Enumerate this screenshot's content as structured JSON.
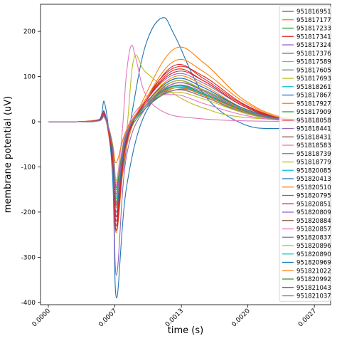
{
  "chart_data": {
    "type": "line",
    "xlabel": "time (s)",
    "ylabel": "membrane potential (uV)",
    "xlim": [
      -8e-05,
      0.0029
    ],
    "ylim": [
      -405,
      260
    ],
    "xticks": [
      {
        "value": 0.0,
        "label": "0.0000"
      },
      {
        "value": 0.000683,
        "label": "0.0007"
      },
      {
        "value": 0.001367,
        "label": "0.0013"
      },
      {
        "value": 0.00205,
        "label": "0.0020"
      },
      {
        "value": 0.002733,
        "label": "0.0027"
      }
    ],
    "yticks": [
      -400,
      -300,
      -200,
      -100,
      0,
      100,
      200
    ],
    "grid": false,
    "legend_position": "top-right",
    "series": [
      {
        "name": "951816951",
        "color": "#1f77b4",
        "x": [
          0,
          0.0003,
          0.00052,
          0.00058,
          0.00066,
          0.0007,
          0.00076,
          0.00086,
          0.001,
          0.00117,
          0.0013,
          0.0016,
          0.002,
          0.0024,
          0.0029
        ],
        "y": [
          0,
          0,
          3,
          20,
          -80,
          -180,
          -120,
          20,
          170,
          230,
          190,
          60,
          -5,
          -15,
          -10
        ]
      },
      {
        "name": "951817177",
        "color": "#ff7f0e",
        "x": [
          0,
          0.0003,
          0.00052,
          0.00058,
          0.00066,
          0.0007,
          0.0008,
          0.001,
          0.0013,
          0.0016,
          0.002,
          0.0024,
          0.0029
        ],
        "y": [
          0,
          0,
          5,
          15,
          -100,
          -245,
          -60,
          60,
          162,
          130,
          50,
          10,
          0
        ]
      },
      {
        "name": "951817233",
        "color": "#2ca02c",
        "x": [
          0,
          0.0003,
          0.00052,
          0.00058,
          0.00066,
          0.0007,
          0.0008,
          0.001,
          0.0013,
          0.0016,
          0.002,
          0.0024,
          0.0029
        ],
        "y": [
          0,
          0,
          2,
          10,
          -60,
          -160,
          -40,
          30,
          75,
          60,
          25,
          5,
          0
        ]
      },
      {
        "name": "951817341",
        "color": "#d62728",
        "x": [
          0,
          0.0003,
          0.00052,
          0.00058,
          0.00066,
          0.0007,
          0.0008,
          0.001,
          0.0013,
          0.0016,
          0.002,
          0.0024,
          0.0029
        ],
        "y": [
          0,
          0,
          4,
          18,
          -90,
          -230,
          -50,
          50,
          120,
          100,
          40,
          8,
          0
        ]
      },
      {
        "name": "951817324",
        "color": "#9467bd",
        "x": [
          0,
          0.0003,
          0.00052,
          0.00058,
          0.00066,
          0.0007,
          0.0008,
          0.001,
          0.0013,
          0.0016,
          0.002,
          0.0024,
          0.0029
        ],
        "y": [
          0,
          0,
          3,
          12,
          -70,
          -210,
          -45,
          45,
          105,
          85,
          35,
          6,
          0
        ]
      },
      {
        "name": "951817376",
        "color": "#8c564b",
        "x": [
          0,
          0.0003,
          0.00052,
          0.00058,
          0.00066,
          0.0007,
          0.0008,
          0.001,
          0.0013,
          0.0016,
          0.002,
          0.0024,
          0.0029
        ],
        "y": [
          0,
          0,
          2,
          10,
          -60,
          -150,
          -35,
          40,
          90,
          70,
          30,
          5,
          0
        ]
      },
      {
        "name": "951817589",
        "color": "#e377c2",
        "x": [
          0,
          0.0003,
          0.00052,
          0.00058,
          0.00066,
          0.0007,
          0.00076,
          0.0008,
          0.00085,
          0.0009,
          0.001,
          0.0012,
          0.0015,
          0.002,
          0.0029
        ],
        "y": [
          0,
          0,
          2,
          10,
          -50,
          -130,
          -20,
          100,
          168,
          140,
          60,
          20,
          8,
          2,
          0
        ]
      },
      {
        "name": "951817605",
        "color": "#7f7f7f",
        "x": [
          0,
          0.0003,
          0.00052,
          0.00058,
          0.00066,
          0.0007,
          0.0008,
          0.001,
          0.0013,
          0.0016,
          0.002,
          0.0024,
          0.0029
        ],
        "y": [
          0,
          0,
          2,
          8,
          -50,
          -140,
          -30,
          35,
          70,
          55,
          20,
          4,
          0
        ]
      },
      {
        "name": "951817693",
        "color": "#bcbd22",
        "x": [
          0,
          0.0003,
          0.00052,
          0.00058,
          0.00066,
          0.0007,
          0.0008,
          0.00088,
          0.001,
          0.0013,
          0.0016,
          0.002,
          0.0029
        ],
        "y": [
          0,
          0,
          3,
          12,
          -60,
          -150,
          -30,
          140,
          110,
          60,
          30,
          10,
          0
        ]
      },
      {
        "name": "951818261",
        "color": "#17becf",
        "x": [
          0,
          0.0003,
          0.00052,
          0.00058,
          0.00066,
          0.0007,
          0.0008,
          0.001,
          0.0013,
          0.0016,
          0.002,
          0.0024,
          0.0029
        ],
        "y": [
          0,
          0,
          2,
          10,
          -55,
          -145,
          -25,
          40,
          80,
          60,
          25,
          5,
          0
        ]
      },
      {
        "name": "951817867",
        "color": "#1f77b4",
        "x": [
          0,
          0.0003,
          0.00052,
          0.00058,
          0.00066,
          0.0007,
          0.0008,
          0.001,
          0.0013,
          0.0016,
          0.002,
          0.0024,
          0.0029
        ],
        "y": [
          0,
          0,
          4,
          40,
          -120,
          -390,
          -150,
          20,
          70,
          60,
          25,
          5,
          0
        ]
      },
      {
        "name": "951817927",
        "color": "#ff7f0e",
        "x": [
          0,
          0.0003,
          0.00052,
          0.00058,
          0.00066,
          0.0007,
          0.0008,
          0.001,
          0.0013,
          0.0016,
          0.002,
          0.0024,
          0.0029
        ],
        "y": [
          0,
          0,
          3,
          12,
          -70,
          -190,
          -40,
          50,
          135,
          110,
          45,
          8,
          0
        ]
      },
      {
        "name": "951817909",
        "color": "#2ca02c",
        "x": [
          0,
          0.0003,
          0.00052,
          0.00058,
          0.00066,
          0.0007,
          0.0008,
          0.001,
          0.0013,
          0.0016,
          0.002,
          0.0024,
          0.0029
        ],
        "y": [
          0,
          0,
          2,
          10,
          -60,
          -170,
          -35,
          35,
          85,
          70,
          30,
          6,
          0
        ]
      },
      {
        "name": "951818058",
        "color": "#d62728",
        "x": [
          0,
          0.0003,
          0.00052,
          0.00058,
          0.00066,
          0.0007,
          0.0008,
          0.001,
          0.0013,
          0.0016,
          0.002,
          0.0024,
          0.0029
        ],
        "y": [
          0,
          0,
          3,
          14,
          -80,
          -220,
          -45,
          45,
          110,
          90,
          35,
          6,
          0
        ]
      },
      {
        "name": "951818441",
        "color": "#9467bd",
        "x": [
          0,
          0.0003,
          0.00052,
          0.00058,
          0.00066,
          0.0007,
          0.0008,
          0.001,
          0.0013,
          0.0016,
          0.002,
          0.0024,
          0.0029
        ],
        "y": [
          0,
          0,
          3,
          16,
          -85,
          -340,
          -80,
          30,
          75,
          60,
          25,
          5,
          0
        ]
      },
      {
        "name": "951818431",
        "color": "#8c564b",
        "x": [
          0,
          0.0003,
          0.00052,
          0.00058,
          0.00066,
          0.0007,
          0.0008,
          0.001,
          0.0013,
          0.0016,
          0.002,
          0.0024,
          0.0029
        ],
        "y": [
          0,
          0,
          2,
          10,
          -60,
          -160,
          -30,
          35,
          90,
          70,
          28,
          5,
          0
        ]
      },
      {
        "name": "951818583",
        "color": "#e377c2",
        "x": [
          0,
          0.0003,
          0.00052,
          0.00058,
          0.00066,
          0.0007,
          0.0008,
          0.001,
          0.0013,
          0.0016,
          0.002,
          0.0024,
          0.0029
        ],
        "y": [
          0,
          0,
          2,
          10,
          -50,
          -140,
          -20,
          45,
          60,
          40,
          15,
          3,
          0
        ]
      },
      {
        "name": "951818739",
        "color": "#7f7f7f",
        "x": [
          0,
          0.0003,
          0.00052,
          0.00058,
          0.00066,
          0.0007,
          0.0008,
          0.001,
          0.0013,
          0.0016,
          0.002,
          0.0024,
          0.0029
        ],
        "y": [
          0,
          0,
          2,
          10,
          -55,
          -150,
          -30,
          35,
          75,
          60,
          25,
          5,
          0
        ]
      },
      {
        "name": "951818779",
        "color": "#bcbd22",
        "x": [
          0,
          0.0003,
          0.00052,
          0.00058,
          0.00066,
          0.0007,
          0.0008,
          0.001,
          0.0013,
          0.0016,
          0.002,
          0.0024,
          0.0029
        ],
        "y": [
          0,
          0,
          2,
          8,
          -50,
          -130,
          -25,
          40,
          65,
          50,
          20,
          4,
          0
        ]
      },
      {
        "name": "951820085",
        "color": "#17becf",
        "x": [
          0,
          0.0003,
          0.00052,
          0.00058,
          0.00066,
          0.0007,
          0.0008,
          0.001,
          0.0013,
          0.0016,
          0.002,
          0.0024,
          0.0029
        ],
        "y": [
          0,
          0,
          2,
          10,
          -60,
          -165,
          -35,
          35,
          80,
          62,
          25,
          5,
          0
        ]
      },
      {
        "name": "951820413",
        "color": "#1f77b4",
        "x": [
          0,
          0.0003,
          0.00052,
          0.00058,
          0.00066,
          0.0007,
          0.0008,
          0.001,
          0.0013,
          0.0016,
          0.002,
          0.0024,
          0.0029
        ],
        "y": [
          0,
          0,
          3,
          14,
          -75,
          -200,
          -40,
          40,
          95,
          75,
          30,
          6,
          0
        ]
      },
      {
        "name": "951820510",
        "color": "#ff7f0e",
        "x": [
          0,
          0.0003,
          0.00052,
          0.00058,
          0.00066,
          0.0007,
          0.0008,
          0.001,
          0.0013,
          0.0016,
          0.002,
          0.0024,
          0.0029
        ],
        "y": [
          0,
          0,
          3,
          12,
          -70,
          -180,
          -35,
          40,
          100,
          80,
          30,
          6,
          0
        ]
      },
      {
        "name": "951820795",
        "color": "#2ca02c",
        "x": [
          0,
          0.0003,
          0.00052,
          0.00058,
          0.00066,
          0.0007,
          0.0008,
          0.001,
          0.0013,
          0.0016,
          0.002,
          0.0024,
          0.0029
        ],
        "y": [
          0,
          0,
          2,
          10,
          -60,
          -150,
          -30,
          30,
          70,
          55,
          22,
          4,
          0
        ]
      },
      {
        "name": "951820851",
        "color": "#d62728",
        "x": [
          0,
          0.0003,
          0.00052,
          0.00058,
          0.00066,
          0.0007,
          0.0008,
          0.001,
          0.0013,
          0.0016,
          0.002,
          0.0024,
          0.0029
        ],
        "y": [
          0,
          0,
          3,
          14,
          -80,
          -210,
          -45,
          45,
          115,
          90,
          35,
          6,
          0
        ]
      },
      {
        "name": "951820809",
        "color": "#9467bd",
        "x": [
          0,
          0.0003,
          0.00052,
          0.00058,
          0.00066,
          0.0007,
          0.0008,
          0.001,
          0.0013,
          0.0016,
          0.002,
          0.0024,
          0.0029
        ],
        "y": [
          0,
          0,
          2,
          10,
          -60,
          -160,
          -30,
          35,
          80,
          65,
          25,
          5,
          0
        ]
      },
      {
        "name": "951820884",
        "color": "#8c564b",
        "x": [
          0,
          0.0003,
          0.00052,
          0.00058,
          0.00066,
          0.0007,
          0.0008,
          0.001,
          0.0013,
          0.0016,
          0.002,
          0.0024,
          0.0029
        ],
        "y": [
          0,
          0,
          2,
          10,
          -55,
          -145,
          -28,
          35,
          85,
          68,
          27,
          5,
          0
        ]
      },
      {
        "name": "951820857",
        "color": "#e377c2",
        "x": [
          0,
          0.0003,
          0.00052,
          0.00058,
          0.00066,
          0.0007,
          0.0008,
          0.001,
          0.0013,
          0.0016,
          0.002,
          0.0024,
          0.0029
        ],
        "y": [
          0,
          0,
          2,
          8,
          -50,
          -135,
          -25,
          40,
          70,
          55,
          22,
          4,
          0
        ]
      },
      {
        "name": "951820837",
        "color": "#7f7f7f",
        "x": [
          0,
          0.0003,
          0.00052,
          0.00058,
          0.00066,
          0.0007,
          0.0008,
          0.001,
          0.0013,
          0.0016,
          0.002,
          0.0024,
          0.0029
        ],
        "y": [
          0,
          0,
          2,
          10,
          -55,
          -150,
          -30,
          30,
          70,
          55,
          22,
          4,
          0
        ]
      },
      {
        "name": "951820896",
        "color": "#bcbd22",
        "x": [
          0,
          0.0003,
          0.00052,
          0.00058,
          0.00066,
          0.0007,
          0.0008,
          0.001,
          0.0013,
          0.0016,
          0.002,
          0.0024,
          0.0029
        ],
        "y": [
          0,
          0,
          2,
          10,
          -60,
          -155,
          -30,
          40,
          90,
          70,
          28,
          5,
          0
        ]
      },
      {
        "name": "951820890",
        "color": "#17becf",
        "x": [
          0,
          0.0003,
          0.00052,
          0.00058,
          0.00066,
          0.0007,
          0.0008,
          0.001,
          0.0013,
          0.0016,
          0.002,
          0.0024,
          0.0029
        ],
        "y": [
          0,
          0,
          2,
          10,
          -55,
          -150,
          -30,
          35,
          78,
          60,
          25,
          5,
          0
        ]
      },
      {
        "name": "951820969",
        "color": "#1f77b4",
        "x": [
          0,
          0.0003,
          0.00052,
          0.00058,
          0.00066,
          0.0007,
          0.0008,
          0.001,
          0.0013,
          0.0016,
          0.002,
          0.0024,
          0.0029
        ],
        "y": [
          0,
          0,
          3,
          12,
          -70,
          -185,
          -38,
          40,
          95,
          75,
          30,
          6,
          0
        ]
      },
      {
        "name": "951821022",
        "color": "#ff7f0e",
        "x": [
          0,
          0.0003,
          0.00052,
          0.00058,
          0.00066,
          0.0007,
          0.0008,
          0.001,
          0.0013,
          0.0016,
          0.002,
          0.0024,
          0.0029
        ],
        "y": [
          0,
          0,
          2,
          10,
          -50,
          -90,
          -20,
          40,
          75,
          58,
          24,
          5,
          0
        ]
      },
      {
        "name": "951820992",
        "color": "#2ca02c",
        "x": [
          0,
          0.0003,
          0.00052,
          0.00058,
          0.00066,
          0.0007,
          0.0008,
          0.001,
          0.0013,
          0.0016,
          0.002,
          0.0024,
          0.0029
        ],
        "y": [
          0,
          0,
          2,
          10,
          -55,
          -145,
          -28,
          35,
          80,
          62,
          25,
          5,
          0
        ]
      },
      {
        "name": "951821043",
        "color": "#d62728",
        "x": [
          0,
          0.0003,
          0.00052,
          0.00058,
          0.00066,
          0.0007,
          0.0008,
          0.001,
          0.0013,
          0.0016,
          0.002,
          0.0024,
          0.0029
        ],
        "y": [
          0,
          0,
          3,
          14,
          -80,
          -240,
          -45,
          45,
          125,
          95,
          38,
          7,
          0
        ]
      },
      {
        "name": "951821037",
        "color": "#9467bd",
        "x": [
          0,
          0.0003,
          0.00052,
          0.00058,
          0.00066,
          0.0007,
          0.0008,
          0.001,
          0.0013,
          0.0016,
          0.002,
          0.0024,
          0.0029
        ],
        "y": [
          0,
          0,
          2,
          10,
          -60,
          -160,
          -30,
          35,
          85,
          68,
          27,
          5,
          0
        ]
      }
    ]
  }
}
